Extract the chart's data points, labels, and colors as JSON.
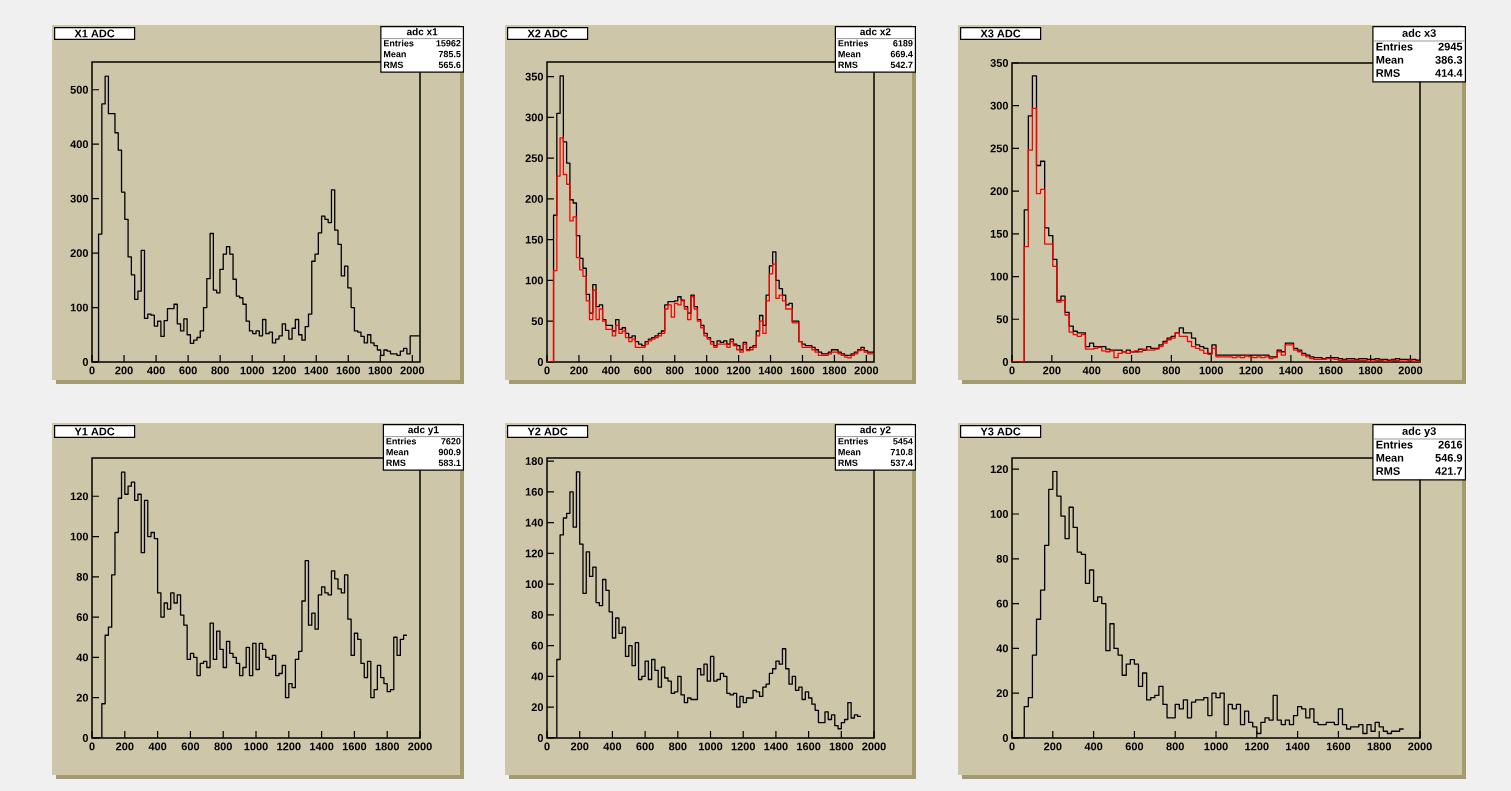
{
  "chart_data": [
    {
      "type": "histogram",
      "title": "X1 ADC",
      "annotations": [
        "adc x1",
        "Entries",
        "15962",
        "Mean",
        "785.5",
        "RMS",
        "565.6"
      ],
      "xlim": [
        0,
        2048
      ],
      "ylim": [
        0,
        551
      ],
      "xticks": [
        0,
        200,
        400,
        600,
        800,
        1000,
        1200,
        1400,
        1600,
        1800,
        2000
      ],
      "yticks": [
        0,
        100,
        200,
        300,
        400,
        500
      ],
      "bins": [
        0,
        20.48,
        40.96,
        61.44,
        81.92,
        102.4,
        122.88,
        143.36,
        163.84,
        184.32,
        204.8,
        225.28,
        245.76,
        266.24,
        286.72,
        307.2,
        327.68,
        348.16,
        368.64,
        389.12,
        409.6,
        430.08,
        450.56,
        471.04,
        491.52,
        512,
        532.48,
        552.96,
        573.44,
        593.92,
        614.4,
        634.88,
        655.36,
        675.84,
        696.32,
        716.8,
        737.28,
        757.76,
        778.24,
        798.72,
        819.2,
        839.68,
        860.16,
        880.64,
        901.12,
        921.6,
        942.08,
        962.56,
        983.04,
        1003.52,
        1024,
        1044.48,
        1064.96,
        1085.44,
        1105.92,
        1126.4,
        1146.88,
        1167.36,
        1187.84,
        1208.32,
        1228.8,
        1249.28,
        1269.76,
        1290.24,
        1310.72,
        1331.2,
        1351.68,
        1372.16,
        1392.64,
        1413.12,
        1433.6,
        1454.08,
        1474.56,
        1495.04,
        1515.52,
        1536,
        1556.48,
        1576.96,
        1597.44,
        1617.92,
        1638.4,
        1658.88,
        1679.36,
        1699.84,
        1720.32,
        1740.8,
        1761.28,
        1781.76,
        1802.24,
        1822.72,
        1843.2,
        1863.68,
        1884.16,
        1904.64,
        1925.12,
        1945.6,
        1966.08,
        1986.56,
        2007.04,
        2027.52,
        2048
      ],
      "series": [
        {
          "color": "#000000",
          "values": [
            0,
            0,
            235,
            474,
            525,
            456,
            456,
            421,
            389,
            312,
            262,
            193,
            160,
            115,
            130,
            205,
            80,
            88,
            86,
            66,
            75,
            47,
            76,
            98,
            98,
            106,
            70,
            57,
            79,
            50,
            34,
            40,
            45,
            57,
            100,
            153,
            236,
            132,
            127,
            170,
            198,
            212,
            198,
            152,
            121,
            118,
            106,
            75,
            57,
            52,
            57,
            48,
            78,
            52,
            55,
            35,
            42,
            48,
            70,
            58,
            42,
            62,
            78,
            50,
            40,
            65,
            88,
            185,
            198,
            237,
            268,
            262,
            256,
            316,
            242,
            216,
            158,
            176,
            136,
            100,
            57,
            55,
            47,
            35,
            50,
            35,
            30,
            22,
            12,
            22,
            20,
            15,
            15,
            12,
            20,
            25,
            15,
            48,
            48,
            48
          ]
        }
      ]
    },
    {
      "type": "histogram",
      "title": "X2 ADC",
      "annotations": [
        "adc x2",
        "Entries",
        "6189",
        "Mean",
        "669.4",
        "RMS",
        "542.7"
      ],
      "xlim": [
        0,
        2048
      ],
      "ylim": [
        0,
        368
      ],
      "xticks": [
        0,
        200,
        400,
        600,
        800,
        1000,
        1200,
        1400,
        1600,
        1800,
        2000
      ],
      "yticks": [
        0,
        50,
        100,
        150,
        200,
        250,
        300,
        350
      ],
      "bins": [
        0,
        20.48,
        40.96,
        61.44,
        81.92,
        102.4,
        122.88,
        143.36,
        163.84,
        184.32,
        204.8,
        225.28,
        245.76,
        266.24,
        286.72,
        307.2,
        327.68,
        348.16,
        368.64,
        389.12,
        409.6,
        430.08,
        450.56,
        471.04,
        491.52,
        512,
        532.48,
        552.96,
        573.44,
        593.92,
        614.4,
        634.88,
        655.36,
        675.84,
        696.32,
        716.8,
        737.28,
        757.76,
        778.24,
        798.72,
        819.2,
        839.68,
        860.16,
        880.64,
        901.12,
        921.6,
        942.08,
        962.56,
        983.04,
        1003.52,
        1024,
        1044.48,
        1064.96,
        1085.44,
        1105.92,
        1126.4,
        1146.88,
        1167.36,
        1187.84,
        1208.32,
        1228.8,
        1249.28,
        1269.76,
        1290.24,
        1310.72,
        1331.2,
        1351.68,
        1372.16,
        1392.64,
        1413.12,
        1433.6,
        1454.08,
        1474.56,
        1495.04,
        1515.52,
        1536,
        1556.48,
        1576.96,
        1597.44,
        1617.92,
        1638.4,
        1658.88,
        1679.36,
        1699.84,
        1720.32,
        1740.8,
        1761.28,
        1781.76,
        1802.24,
        1822.72,
        1843.2,
        1863.68,
        1884.16,
        1904.64,
        1925.12,
        1945.6,
        1966.08,
        1986.56,
        2007.04,
        2027.52,
        2048
      ],
      "series": [
        {
          "color": "#000000",
          "values": [
            0,
            0,
            180,
            305,
            351,
            270,
            244,
            199,
            195,
            155,
            127,
            115,
            83,
            60,
            95,
            68,
            70,
            52,
            45,
            45,
            38,
            52,
            40,
            42,
            35,
            30,
            32,
            25,
            22,
            20,
            25,
            28,
            30,
            32,
            35,
            38,
            70,
            74,
            74,
            75,
            80,
            76,
            68,
            60,
            82,
            68,
            52,
            45,
            35,
            30,
            25,
            20,
            26,
            24,
            26,
            22,
            28,
            22,
            20,
            15,
            24,
            15,
            18,
            20,
            38,
            57,
            45,
            82,
            118,
            135,
            100,
            90,
            82,
            70,
            72,
            50,
            50,
            25,
            22,
            20,
            20,
            18,
            15,
            12,
            10,
            10,
            12,
            15,
            15,
            12,
            10,
            8,
            8,
            10,
            12,
            15,
            18,
            14,
            12,
            12
          ]
        },
        {
          "color": "#ff0000",
          "values": [
            0,
            0,
            112,
            228,
            275,
            230,
            218,
            173,
            178,
            128,
            113,
            105,
            75,
            52,
            88,
            52,
            65,
            50,
            40,
            40,
            32,
            45,
            35,
            38,
            30,
            25,
            28,
            18,
            18,
            18,
            22,
            26,
            28,
            30,
            32,
            35,
            65,
            70,
            55,
            72,
            70,
            75,
            65,
            52,
            80,
            65,
            50,
            42,
            32,
            28,
            22,
            18,
            22,
            22,
            22,
            18,
            25,
            20,
            15,
            12,
            22,
            14,
            15,
            18,
            32,
            50,
            35,
            75,
            108,
            120,
            78,
            82,
            75,
            65,
            65,
            48,
            48,
            25,
            18,
            18,
            18,
            15,
            12,
            8,
            8,
            8,
            10,
            12,
            12,
            10,
            8,
            6,
            5,
            8,
            10,
            14,
            15,
            12,
            10,
            10
          ]
        }
      ]
    },
    {
      "type": "histogram",
      "title": "X3 ADC",
      "annotations": [
        "adc x3",
        "Entries",
        "2945",
        "Mean",
        "386.3",
        "RMS",
        "414.4"
      ],
      "xlim": [
        0,
        2048
      ],
      "ylim": [
        0,
        350
      ],
      "xticks": [
        0,
        200,
        400,
        600,
        800,
        1000,
        1200,
        1400,
        1600,
        1800,
        2000
      ],
      "yticks": [
        0,
        50,
        100,
        150,
        200,
        250,
        300,
        350
      ],
      "bins": [
        0,
        20.48,
        40.96,
        61.44,
        81.92,
        102.4,
        122.88,
        143.36,
        163.84,
        184.32,
        204.8,
        225.28,
        245.76,
        266.24,
        286.72,
        307.2,
        327.68,
        348.16,
        368.64,
        389.12,
        409.6,
        430.08,
        450.56,
        471.04,
        491.52,
        512,
        532.48,
        552.96,
        573.44,
        593.92,
        614.4,
        634.88,
        655.36,
        675.84,
        696.32,
        716.8,
        737.28,
        757.76,
        778.24,
        798.72,
        819.2,
        839.68,
        860.16,
        880.64,
        901.12,
        921.6,
        942.08,
        962.56,
        983.04,
        1003.52,
        1024,
        1044.48,
        1064.96,
        1085.44,
        1105.92,
        1126.4,
        1146.88,
        1167.36,
        1187.84,
        1208.32,
        1228.8,
        1249.28,
        1269.76,
        1290.24,
        1310.72,
        1331.2,
        1351.68,
        1372.16,
        1392.64,
        1413.12,
        1433.6,
        1454.08,
        1474.56,
        1495.04,
        1515.52,
        1536,
        1556.48,
        1576.96,
        1597.44,
        1617.92,
        1638.4,
        1658.88,
        1679.36,
        1699.84,
        1720.32,
        1740.8,
        1761.28,
        1781.76,
        1802.24,
        1822.72,
        1843.2,
        1863.68,
        1884.16,
        1904.64,
        1925.12,
        1945.6,
        1966.08,
        1986.56,
        2007.04,
        2027.52,
        2048
      ],
      "series": [
        {
          "color": "#000000",
          "values": [
            0,
            0,
            0,
            178,
            288,
            335,
            230,
            235,
            157,
            148,
            120,
            72,
            77,
            58,
            42,
            36,
            34,
            34,
            18,
            22,
            18,
            18,
            18,
            15,
            14,
            14,
            14,
            12,
            14,
            12,
            12,
            15,
            14,
            18,
            16,
            16,
            20,
            24,
            28,
            30,
            34,
            40,
            34,
            34,
            28,
            20,
            18,
            16,
            10,
            20,
            8,
            8,
            8,
            8,
            8,
            8,
            8,
            8,
            8,
            8,
            8,
            8,
            8,
            6,
            6,
            14,
            12,
            22,
            22,
            16,
            14,
            10,
            8,
            6,
            5,
            5,
            4,
            5,
            5,
            5,
            4,
            3,
            4,
            4,
            3,
            4,
            4,
            3,
            3,
            4,
            3,
            3,
            2,
            3,
            4,
            3,
            3,
            3,
            3,
            2
          ]
        },
        {
          "color": "#ff0000",
          "values": [
            0,
            0,
            0,
            135,
            248,
            297,
            197,
            202,
            138,
            138,
            112,
            70,
            72,
            55,
            35,
            32,
            30,
            32,
            15,
            15,
            16,
            17,
            13,
            12,
            13,
            5,
            10,
            12,
            10,
            12,
            13,
            12,
            15,
            14,
            14,
            15,
            18,
            22,
            26,
            28,
            34,
            30,
            30,
            24,
            18,
            16,
            14,
            10,
            9,
            16,
            6,
            6,
            6,
            6,
            5,
            6,
            5,
            7,
            6,
            5,
            6,
            5,
            6,
            4,
            5,
            12,
            8,
            20,
            20,
            14,
            12,
            8,
            6,
            4,
            3,
            3,
            3,
            4,
            4,
            3,
            2,
            2,
            2,
            2,
            2,
            2,
            2,
            1,
            1,
            2,
            2,
            1,
            1,
            2,
            2,
            1,
            1,
            2,
            1,
            1
          ]
        }
      ]
    },
    {
      "type": "histogram",
      "title": "Y1 ADC",
      "annotations": [
        "adc y1",
        "Entries",
        "7620",
        "Mean",
        "900.9",
        "RMS",
        "583.1"
      ],
      "xlim": [
        0,
        2000
      ],
      "ylim": [
        0,
        139
      ],
      "xticks": [
        0,
        200,
        400,
        600,
        800,
        1000,
        1200,
        1400,
        1600,
        1800,
        2000
      ],
      "yticks": [
        0,
        20,
        40,
        60,
        80,
        100,
        120
      ],
      "bins": [
        0,
        20,
        40,
        60,
        80,
        100,
        120,
        140,
        160,
        180,
        200,
        220,
        240,
        260,
        280,
        300,
        320,
        340,
        360,
        380,
        400,
        420,
        440,
        460,
        480,
        500,
        520,
        540,
        560,
        580,
        600,
        620,
        640,
        660,
        680,
        700,
        720,
        740,
        760,
        780,
        800,
        820,
        840,
        860,
        880,
        900,
        920,
        940,
        960,
        980,
        1000,
        1020,
        1040,
        1060,
        1080,
        1100,
        1120,
        1140,
        1160,
        1180,
        1200,
        1220,
        1240,
        1260,
        1280,
        1300,
        1320,
        1340,
        1360,
        1380,
        1400,
        1420,
        1440,
        1460,
        1480,
        1500,
        1520,
        1540,
        1560,
        1580,
        1600,
        1620,
        1640,
        1660,
        1680,
        1700,
        1720,
        1740,
        1760,
        1780,
        1800,
        1820,
        1840,
        1860,
        1880,
        1900,
        1920
      ],
      "series": [
        {
          "color": "#000000",
          "values": [
            0,
            0,
            0,
            17,
            51,
            55,
            81,
            102,
            119,
            132,
            121,
            125,
            127,
            118,
            121,
            92,
            118,
            100,
            102,
            99,
            72,
            60,
            67,
            64,
            72,
            67,
            71,
            61,
            56,
            39,
            42,
            40,
            31,
            37,
            38,
            35,
            57,
            39,
            53,
            44,
            35,
            48,
            42,
            40,
            37,
            31,
            35,
            45,
            31,
            47,
            34,
            47,
            44,
            40,
            39,
            41,
            31,
            32,
            36,
            20,
            27,
            25,
            39,
            43,
            68,
            88,
            56,
            62,
            54,
            71,
            75,
            72,
            71,
            83,
            79,
            74,
            72,
            81,
            59,
            41,
            52,
            49,
            37,
            30,
            38,
            20,
            24,
            36,
            30,
            27,
            23,
            24,
            50,
            41,
            49,
            51
          ]
        }
      ]
    },
    {
      "type": "histogram",
      "title": "Y2 ADC",
      "annotations": [
        "adc y2",
        "Entries",
        "5454",
        "Mean",
        "710.8",
        "RMS",
        "537.4"
      ],
      "xlim": [
        0,
        2000
      ],
      "ylim": [
        0,
        182
      ],
      "xticks": [
        0,
        200,
        400,
        600,
        800,
        1000,
        1200,
        1400,
        1600,
        1800,
        2000
      ],
      "yticks": [
        0,
        20,
        40,
        60,
        80,
        100,
        120,
        140,
        160,
        180
      ],
      "bins": [
        0,
        20,
        40,
        60,
        80,
        100,
        120,
        140,
        160,
        180,
        200,
        220,
        240,
        260,
        280,
        300,
        320,
        340,
        360,
        380,
        400,
        420,
        440,
        460,
        480,
        500,
        520,
        540,
        560,
        580,
        600,
        620,
        640,
        660,
        680,
        700,
        720,
        740,
        760,
        780,
        800,
        820,
        840,
        860,
        880,
        900,
        920,
        940,
        960,
        980,
        1000,
        1020,
        1040,
        1060,
        1080,
        1100,
        1120,
        1140,
        1160,
        1180,
        1200,
        1220,
        1240,
        1260,
        1280,
        1300,
        1320,
        1340,
        1360,
        1380,
        1400,
        1420,
        1440,
        1460,
        1480,
        1500,
        1520,
        1540,
        1560,
        1580,
        1600,
        1620,
        1640,
        1660,
        1680,
        1700,
        1720,
        1740,
        1760,
        1780,
        1800,
        1820,
        1840,
        1860,
        1880,
        1900,
        1920
      ],
      "series": [
        {
          "color": "#000000",
          "values": [
            0,
            0,
            0,
            51,
            132,
            143,
            146,
            160,
            137,
            173,
            126,
            94,
            121,
            105,
            111,
            88,
            86,
            103,
            96,
            82,
            65,
            78,
            68,
            72,
            53,
            60,
            47,
            62,
            38,
            40,
            50,
            38,
            51,
            44,
            33,
            46,
            39,
            37,
            29,
            30,
            40,
            28,
            23,
            26,
            25,
            25,
            45,
            41,
            48,
            37,
            53,
            37,
            38,
            42,
            40,
            29,
            28,
            29,
            20,
            27,
            23,
            26,
            26,
            31,
            30,
            27,
            33,
            35,
            42,
            45,
            50,
            48,
            58,
            45,
            35,
            40,
            31,
            33,
            25,
            30,
            26,
            22,
            18,
            10,
            10,
            17,
            12,
            15,
            8,
            6,
            10,
            12,
            23,
            13,
            15,
            14
          ]
        }
      ]
    },
    {
      "type": "histogram",
      "title": "Y3 ADC",
      "annotations": [
        "adc y3",
        "Entries",
        "2616",
        "Mean",
        "546.9",
        "RMS",
        "421.7"
      ],
      "xlim": [
        0,
        2000
      ],
      "ylim": [
        0,
        125
      ],
      "xticks": [
        0,
        200,
        400,
        600,
        800,
        1000,
        1200,
        1400,
        1600,
        1800,
        2000
      ],
      "yticks": [
        0,
        20,
        40,
        60,
        80,
        100,
        120
      ],
      "bins": [
        0,
        20,
        40,
        60,
        80,
        100,
        120,
        140,
        160,
        180,
        200,
        220,
        240,
        260,
        280,
        300,
        320,
        340,
        360,
        380,
        400,
        420,
        440,
        460,
        480,
        500,
        520,
        540,
        560,
        580,
        600,
        620,
        640,
        660,
        680,
        700,
        720,
        740,
        760,
        780,
        800,
        820,
        840,
        860,
        880,
        900,
        920,
        940,
        960,
        980,
        1000,
        1020,
        1040,
        1060,
        1080,
        1100,
        1120,
        1140,
        1160,
        1180,
        1200,
        1220,
        1240,
        1260,
        1280,
        1300,
        1320,
        1340,
        1360,
        1380,
        1400,
        1420,
        1440,
        1460,
        1480,
        1500,
        1520,
        1540,
        1560,
        1580,
        1600,
        1620,
        1640,
        1660,
        1680,
        1700,
        1720,
        1740,
        1760,
        1780,
        1800,
        1820,
        1840,
        1860,
        1880,
        1900,
        1920
      ],
      "series": [
        {
          "color": "#000000",
          "values": [
            0,
            0,
            0,
            14,
            18,
            37,
            53,
            66,
            86,
            111,
            119,
            108,
            99,
            89,
            103,
            94,
            83,
            82,
            69,
            75,
            61,
            63,
            60,
            39,
            51,
            40,
            37,
            28,
            33,
            35,
            33,
            23,
            29,
            17,
            18,
            19,
            23,
            15,
            9,
            9,
            15,
            13,
            17,
            9,
            16,
            17,
            17,
            18,
            10,
            20,
            18,
            20,
            6,
            15,
            13,
            15,
            6,
            12,
            7,
            5,
            2,
            7,
            9,
            8,
            19,
            8,
            6,
            8,
            6,
            10,
            14,
            13,
            9,
            13,
            7,
            6,
            6,
            7,
            7,
            6,
            13,
            6,
            4,
            5,
            5,
            6,
            2,
            6,
            3,
            7,
            5,
            3,
            2,
            3,
            3,
            4
          ]
        }
      ]
    }
  ]
}
